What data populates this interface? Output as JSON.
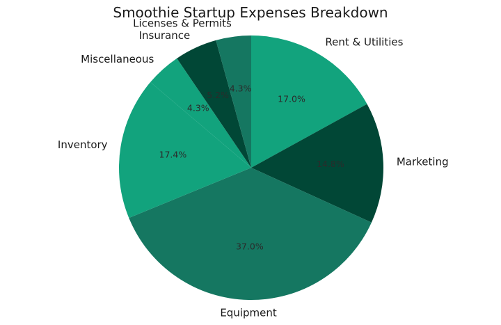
{
  "chart_data": {
    "type": "pie",
    "title": "Smoothie Startup Expenses Breakdown",
    "categories": [
      "Rent & Utilities",
      "Marketing",
      "Equipment",
      "Inventory",
      "Miscellaneous",
      "Insurance",
      "Licenses & Permits"
    ],
    "values": [
      17.0,
      14.8,
      37.0,
      17.4,
      4.3,
      5.2,
      4.3
    ],
    "value_labels": [
      "17.0%",
      "14.8%",
      "37.0%",
      "17.4%",
      "4.3%",
      "5.2%",
      "4.3%"
    ],
    "colors": [
      "#12a37d",
      "#014736",
      "#157761",
      "#12a37d",
      "#12a37d",
      "#014736",
      "#157761"
    ],
    "start_angle_deg": 90,
    "direction": "clockwise"
  }
}
